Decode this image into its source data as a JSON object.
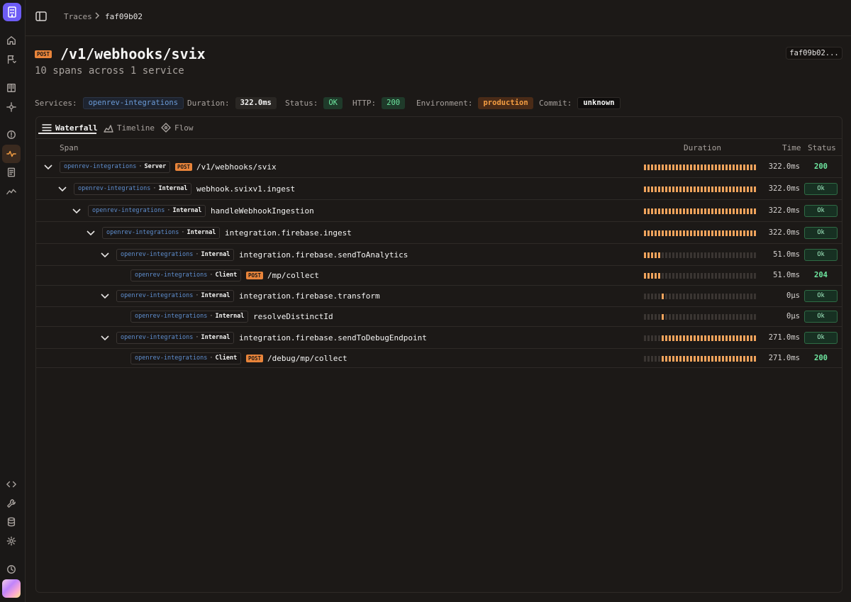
{
  "breadcrumb": {
    "traces": "Traces",
    "current": "faf09b02"
  },
  "header": {
    "method": "POST",
    "title": "/v1/webhooks/svix",
    "subtitle": "10 spans across 1 service",
    "trace_id": "faf09b02..."
  },
  "meta": {
    "services_label": "Services:",
    "services_value": "openrev-integrations",
    "duration_label": "Duration:",
    "duration_value": "322.0ms",
    "status_label": "Status:",
    "status_value": "OK",
    "http_label": "HTTP:",
    "http_value": "200",
    "environment_label": "Environment:",
    "environment_value": "production",
    "commit_label": "Commit:",
    "commit_value": "unknown"
  },
  "tabs": {
    "waterfall": "Waterfall",
    "timeline": "Timeline",
    "flow": "Flow"
  },
  "columns": {
    "span": "Span",
    "duration": "Duration",
    "time": "Time",
    "status": "Status"
  },
  "spans": [
    {
      "service": "openrev-integrations",
      "kind": "Server",
      "method": "POST",
      "name": "/v1/webhooks/svix",
      "time": "322.0ms",
      "status": "200",
      "status_style": "text",
      "depth": 0,
      "expandable": true,
      "bar_start": 0,
      "bar_fraction": 1.0
    },
    {
      "service": "openrev-integrations",
      "kind": "Internal",
      "method": "",
      "name": "webhook.svixv1.ingest",
      "time": "322.0ms",
      "status": "Ok",
      "status_style": "chip",
      "depth": 1,
      "expandable": true,
      "bar_start": 0,
      "bar_fraction": 1.0
    },
    {
      "service": "openrev-integrations",
      "kind": "Internal",
      "method": "",
      "name": "handleWebhookIngestion",
      "time": "322.0ms",
      "status": "Ok",
      "status_style": "chip",
      "depth": 2,
      "expandable": true,
      "bar_start": 0,
      "bar_fraction": 1.0
    },
    {
      "service": "openrev-integrations",
      "kind": "Internal",
      "method": "",
      "name": "integration.firebase.ingest",
      "time": "322.0ms",
      "status": "Ok",
      "status_style": "chip",
      "depth": 3,
      "expandable": true,
      "bar_start": 0,
      "bar_fraction": 1.0
    },
    {
      "service": "openrev-integrations",
      "kind": "Internal",
      "method": "",
      "name": "integration.firebase.sendToAnalytics",
      "time": "51.0ms",
      "status": "Ok",
      "status_style": "chip",
      "depth": 4,
      "expandable": true,
      "bar_start": 0,
      "bar_fraction": 0.16
    },
    {
      "service": "openrev-integrations",
      "kind": "Client",
      "method": "POST",
      "name": "/mp/collect",
      "time": "51.0ms",
      "status": "204",
      "status_style": "text",
      "depth": 5,
      "expandable": false,
      "bar_start": 0,
      "bar_fraction": 0.16
    },
    {
      "service": "openrev-integrations",
      "kind": "Internal",
      "method": "",
      "name": "integration.firebase.transform",
      "time": "0µs",
      "status": "Ok",
      "status_style": "chip",
      "depth": 4,
      "expandable": true,
      "bar_start": 0.16,
      "bar_fraction": 0.0
    },
    {
      "service": "openrev-integrations",
      "kind": "Internal",
      "method": "",
      "name": "resolveDistinctId",
      "time": "0µs",
      "status": "Ok",
      "status_style": "chip",
      "depth": 5,
      "expandable": false,
      "bar_start": 0.16,
      "bar_fraction": 0.0
    },
    {
      "service": "openrev-integrations",
      "kind": "Internal",
      "method": "",
      "name": "integration.firebase.sendToDebugEndpoint",
      "time": "271.0ms",
      "status": "Ok",
      "status_style": "chip",
      "depth": 4,
      "expandable": true,
      "bar_start": 0.16,
      "bar_fraction": 0.84
    },
    {
      "service": "openrev-integrations",
      "kind": "Client",
      "method": "POST",
      "name": "/debug/mp/collect",
      "time": "271.0ms",
      "status": "200",
      "status_style": "text",
      "depth": 5,
      "expandable": false,
      "bar_start": 0.16,
      "bar_fraction": 0.84
    }
  ]
}
